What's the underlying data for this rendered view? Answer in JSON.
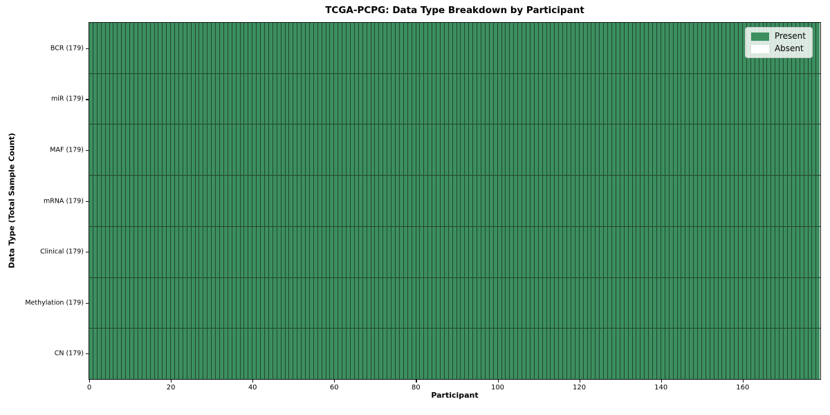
{
  "page": {
    "title": "TCGA-PCPG: Data Type Breakdown by Participant"
  },
  "chart_data": {
    "type": "heatmap",
    "title": "TCGA-PCPG: Data Type Breakdown by Participant",
    "xlabel": "Participant",
    "ylabel": "Data Type (Total Sample Count)",
    "x_range": [
      0,
      179
    ],
    "n_participants": 179,
    "xticks": [
      0,
      20,
      40,
      60,
      80,
      100,
      120,
      140,
      160
    ],
    "rows": [
      {
        "label": "BCR",
        "total_samples": 179,
        "present_count": 179,
        "absent_count": 0
      },
      {
        "label": "miR",
        "total_samples": 179,
        "present_count": 179,
        "absent_count": 0
      },
      {
        "label": "MAF",
        "total_samples": 179,
        "present_count": 179,
        "absent_count": 0
      },
      {
        "label": "mRNA",
        "total_samples": 179,
        "present_count": 179,
        "absent_count": 0
      },
      {
        "label": "Clinical",
        "total_samples": 179,
        "present_count": 179,
        "absent_count": 0
      },
      {
        "label": "Methylation",
        "total_samples": 179,
        "present_count": 179,
        "absent_count": 0
      },
      {
        "label": "CN",
        "total_samples": 179,
        "present_count": 179,
        "absent_count": 0
      }
    ],
    "all_cells_present": true,
    "grid": true,
    "legend": {
      "location": "upper right",
      "entries": [
        {
          "label": "Present",
          "color": "#3c8f5f"
        },
        {
          "label": "Absent",
          "color": "#ffffff"
        }
      ]
    },
    "colors": {
      "present": "#3c8f5f",
      "absent": "#ffffff",
      "cell_edge": "#234632",
      "spine": "#111111",
      "background": "#ffffff"
    }
  }
}
